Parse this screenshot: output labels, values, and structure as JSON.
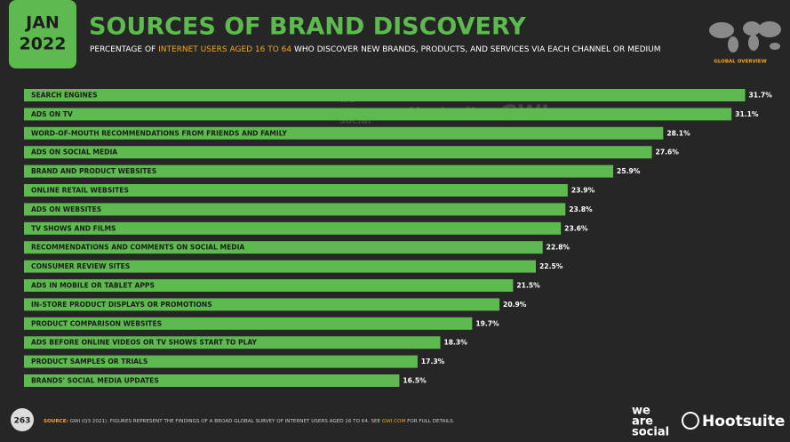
{
  "badge": {
    "month": "JAN",
    "year": "2022"
  },
  "title": "SOURCES OF BRAND DISCOVERY",
  "subtitle": [
    "PERCENTAGE OF ",
    "INTERNET USERS AGED 16 TO 64",
    " WHO DISCOVER NEW BRANDS, PRODUCTS, AND SERVICES VIA EACH CHANNEL OR MEDIUM"
  ],
  "region": "GLOBAL OVERVIEW",
  "watermark": {
    "brand1": [
      "we",
      "are",
      "social"
    ],
    "brand2": "Hootsuite",
    "brand3": "GWI."
  },
  "chart_data": {
    "type": "bar",
    "orientation": "horizontal",
    "color": "#5cba4f",
    "categories": [
      "SEARCH ENGINES",
      "ADS ON TV",
      "WORD-OF-MOUTH RECOMMENDATIONS FROM FRIENDS AND FAMILY",
      "ADS ON SOCIAL MEDIA",
      "BRAND AND PRODUCT WEBSITES",
      "ONLINE RETAIL WEBSITES",
      "ADS ON WEBSITES",
      "TV SHOWS AND FILMS",
      "RECOMMENDATIONS AND COMMENTS ON SOCIAL MEDIA",
      "CONSUMER REVIEW SITES",
      "ADS IN MOBILE OR TABLET APPS",
      "IN-STORE PRODUCT DISPLAYS OR PROMOTIONS",
      "PRODUCT COMPARISON WEBSITES",
      "ADS BEFORE ONLINE VIDEOS OR TV SHOWS START TO PLAY",
      "PRODUCT SAMPLES OR TRIALS",
      "BRANDS' SOCIAL MEDIA UPDATES"
    ],
    "values": [
      31.7,
      31.1,
      28.1,
      27.6,
      25.9,
      23.9,
      23.8,
      23.6,
      22.8,
      22.5,
      21.5,
      20.9,
      19.7,
      18.3,
      17.3,
      16.5
    ],
    "value_labels": [
      "31.7%",
      "31.1%",
      "28.1%",
      "27.6%",
      "25.9%",
      "23.9%",
      "23.8%",
      "23.6%",
      "22.8%",
      "22.5%",
      "21.5%",
      "20.9%",
      "19.7%",
      "18.3%",
      "17.3%",
      "16.5%"
    ]
  },
  "footer": {
    "page": "263",
    "source": [
      "SOURCE:",
      " GWI (Q3 2021). FIGURES REPRESENT THE FINDINGS OF A BROAD GLOBAL SURVEY OF INTERNET USERS AGED 16 TO 64. SEE ",
      "GWI.COM",
      " FOR FULL DETAILS."
    ],
    "logo1": [
      "we",
      "are",
      "social"
    ],
    "logo2": "Hootsuite"
  }
}
